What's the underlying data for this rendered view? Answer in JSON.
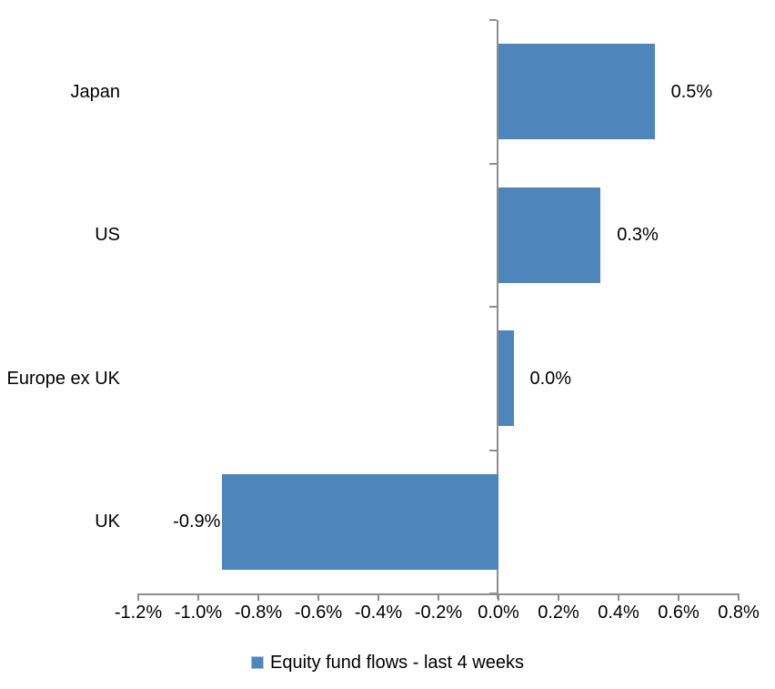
{
  "chart_data": {
    "type": "bar",
    "orientation": "horizontal",
    "title": "",
    "xlabel": "",
    "ylabel": "",
    "categories": [
      "Japan",
      "US",
      "Europe ex UK",
      "UK"
    ],
    "series": [
      {
        "name": "Equity fund flows - last 4 weeks",
        "values": [
          0.5,
          0.3,
          0.0,
          -0.9
        ],
        "data_labels": [
          "0.5%",
          "0.3%",
          "0.0%",
          "-0.9%"
        ],
        "plot_values": [
          0.52,
          0.34,
          0.05,
          -0.92
        ]
      }
    ],
    "xlim": [
      -1.2,
      0.8
    ],
    "x_tick_step": 0.2,
    "x_tick_labels": [
      "-1.2%",
      "-1.0%",
      "-0.8%",
      "-0.6%",
      "-0.4%",
      "-0.2%",
      "0.0%",
      "0.2%",
      "0.4%",
      "0.6%",
      "0.8%"
    ],
    "grid": false,
    "legend": {
      "position": "bottom",
      "label": "Equity fund flows - last 4 weeks"
    },
    "colors": {
      "bar": "#4e86bc",
      "axis": "#8e8e8e",
      "text": "#000000",
      "background": "#ffffff"
    }
  }
}
